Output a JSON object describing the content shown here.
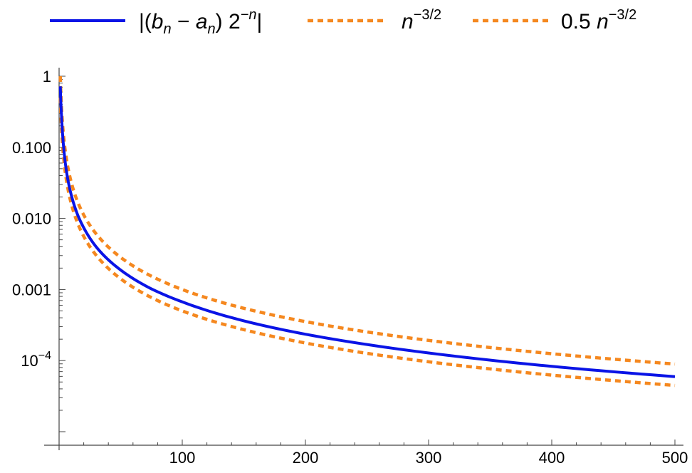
{
  "chart_data": {
    "type": "line",
    "title": "",
    "xlabel": "",
    "ylabel": "",
    "xlim": [
      0,
      500
    ],
    "ylog": true,
    "ylim_log10": [
      -5.2,
      0.1
    ],
    "x_ticks": [
      {
        "value": 100,
        "label": "100"
      },
      {
        "value": 200,
        "label": "200"
      },
      {
        "value": 300,
        "label": "300"
      },
      {
        "value": 400,
        "label": "400"
      },
      {
        "value": 500,
        "label": "500"
      }
    ],
    "y_ticks": [
      {
        "log10": 0,
        "label": "1"
      },
      {
        "log10": -1,
        "label": "0.100"
      },
      {
        "log10": -2,
        "label": "0.010"
      },
      {
        "log10": -3,
        "label": "0.001"
      },
      {
        "log10": -4,
        "label_base": "10",
        "label_exp": "−4"
      }
    ],
    "legend_position": "top",
    "series": [
      {
        "legend_prefix": "|(",
        "legend_b": "b",
        "legend_sub_n": "n",
        "legend_minus": " − ",
        "legend_a": "a",
        "legend_mid": ") 2",
        "legend_exp": "−n",
        "legend_suffix": "|",
        "style": "solid",
        "color": "#0a14e6",
        "x": [
          1,
          2,
          3,
          5,
          7,
          10,
          15,
          20,
          30,
          50,
          75,
          100,
          150,
          200,
          300,
          400,
          500
        ],
        "y": [
          0.72,
          0.27,
          0.14,
          0.061,
          0.036,
          0.021,
          0.0113,
          0.0074,
          0.004,
          0.00188,
          0.00102,
          0.00067,
          0.000362,
          0.000235,
          0.000128,
          8.3e-05,
          5.95e-05
        ]
      },
      {
        "legend_base": "n",
        "legend_exp": "−3/2",
        "style": "dotted",
        "color": "#f5881f",
        "formula": "n^-1.5",
        "x": [
          1,
          500
        ],
        "y": [
          1,
          8.94e-05
        ]
      },
      {
        "legend_coef": "0.5",
        "legend_base": "n",
        "legend_exp": "−3/2",
        "style": "dotted",
        "color": "#f5881f",
        "formula": "0.5*n^-1.5",
        "x": [
          1,
          500
        ],
        "y": [
          0.5,
          4.47e-05
        ]
      }
    ]
  }
}
